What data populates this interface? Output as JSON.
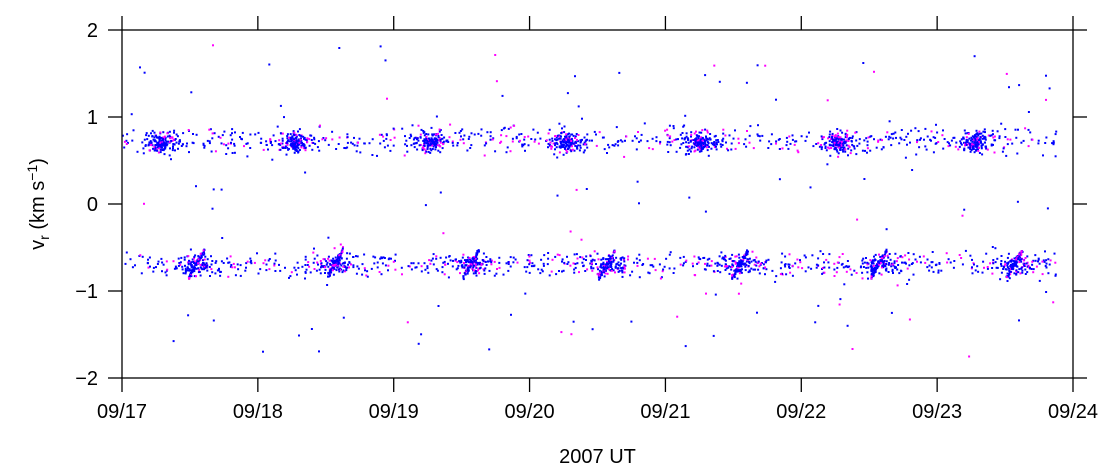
{
  "chart_data": {
    "type": "scatter",
    "title": "",
    "xlabel": "2007 UT",
    "ylabel_parts": {
      "main": "v",
      "sub": "r",
      "unit_open": " (km s",
      "sup": "−1",
      "unit_close": ")"
    },
    "x_tick_labels": [
      "09/17",
      "09/18",
      "09/19",
      "09/20",
      "09/21",
      "09/22",
      "09/23",
      "09/24"
    ],
    "xlim": [
      0,
      7
    ],
    "y_ticks": [
      -2,
      -1,
      0,
      1,
      2
    ],
    "y_tick_labels": [
      "−2",
      "−1",
      "0",
      "1",
      "2"
    ],
    "ylim": [
      -2,
      2
    ],
    "grid": false,
    "legend": "none",
    "series_colors": [
      "#0000ff",
      "#ff00ff"
    ],
    "point_model": {
      "primary_color": "#0000ff",
      "secondary_color": "#ff00ff",
      "positive_band": {
        "center": 0.73,
        "spread": 0.12
      },
      "negative_band": {
        "center": -0.7,
        "spread": 0.11
      },
      "positive_clusters_day": [
        0.29,
        1.27,
        2.27,
        3.27,
        4.25,
        5.27,
        6.29
      ],
      "negative_streaks_day": [
        0.55,
        1.57,
        2.57,
        3.57,
        4.55,
        5.57,
        6.57
      ],
      "data_end_day": 6.88,
      "approx_point_count": 3000
    }
  }
}
